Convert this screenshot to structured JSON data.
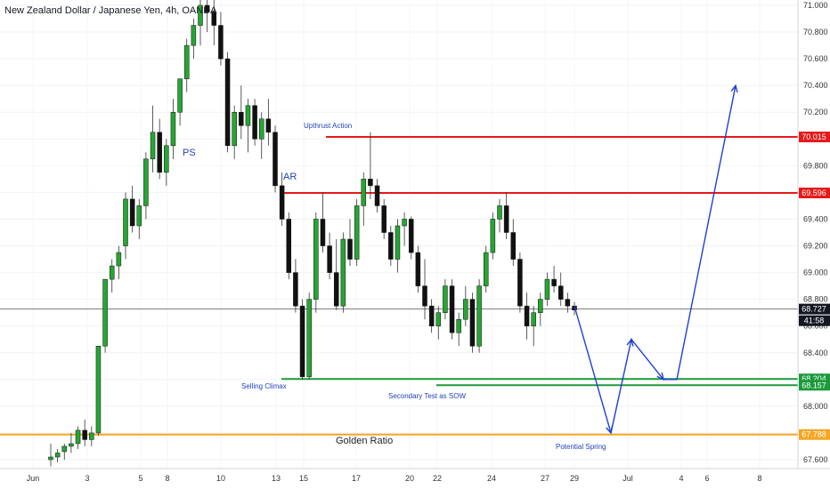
{
  "chart_data": {
    "type": "candlestick",
    "title": "New Zealand Dollar / Japanese Yen, 4h, OANDA",
    "y_axis": {
      "ticks": [
        "71.000",
        "70.800",
        "70.600",
        "70.400",
        "70.200",
        "70.000",
        "69.800",
        "69.600",
        "69.400",
        "69.200",
        "69.000",
        "68.800",
        "68.600",
        "68.400",
        "68.200",
        "68.000",
        "67.800",
        "67.600"
      ],
      "range": [
        67.5,
        71.05
      ]
    },
    "x_axis": {
      "ticks": [
        "Jun",
        "3",
        "5",
        "8",
        "10",
        "13",
        "15",
        "17",
        "20",
        "22",
        "24",
        "27",
        "29",
        "Jul",
        "4",
        "6",
        "8"
      ]
    },
    "price_labels": [
      {
        "text": "70.015",
        "value": 70.015,
        "color": "#e61919"
      },
      {
        "text": "69.596",
        "value": 69.596,
        "color": "#e61919"
      },
      {
        "text": "68.727",
        "value": 68.727,
        "color": "#131722"
      },
      {
        "text": "41:58",
        "value": 68.64,
        "color": "#131722"
      },
      {
        "text": "68.204",
        "value": 68.204,
        "color": "#1a9a3a"
      },
      {
        "text": "68.157",
        "value": 68.157,
        "color": "#1a9a3a"
      },
      {
        "text": "67.788",
        "value": 67.788,
        "color": "#f5a623"
      }
    ],
    "levels": [
      {
        "name": "upthrust",
        "value": 70.015,
        "color": "#e61919"
      },
      {
        "name": "ar",
        "value": 69.596,
        "color": "#e61919"
      },
      {
        "name": "support-upper",
        "value": 68.204,
        "color": "#1a9a3a"
      },
      {
        "name": "support-lower",
        "value": 68.157,
        "color": "#1a9a3a"
      },
      {
        "name": "golden-ratio",
        "value": 67.788,
        "color": "#f5a623"
      },
      {
        "name": "current-price",
        "value": 68.727,
        "color": "#555555"
      }
    ],
    "annotations": {
      "ps": "PS",
      "ar": "AR",
      "upthrust": "Upthrust Action",
      "selling_climax": "Selling Climax",
      "secondary_test": "Secondary Test as SOW",
      "potential_spring": "Potential Spring",
      "golden_ratio": "Golden Ratio"
    },
    "candles": [
      [
        67.6,
        67.72,
        67.55,
        67.62
      ],
      [
        67.62,
        67.68,
        67.58,
        67.65
      ],
      [
        67.66,
        67.72,
        67.6,
        67.7
      ],
      [
        67.7,
        67.8,
        67.65,
        67.72
      ],
      [
        67.72,
        67.85,
        67.68,
        67.82
      ],
      [
        67.82,
        67.9,
        67.7,
        67.75
      ],
      [
        67.75,
        67.85,
        67.7,
        67.8
      ],
      [
        67.8,
        68.45,
        67.78,
        68.45
      ],
      [
        68.45,
        68.95,
        68.4,
        68.95
      ],
      [
        68.95,
        69.1,
        68.85,
        69.05
      ],
      [
        69.05,
        69.2,
        68.95,
        69.15
      ],
      [
        69.2,
        69.6,
        69.1,
        69.55
      ],
      [
        69.55,
        69.65,
        69.3,
        69.35
      ],
      [
        69.35,
        69.55,
        69.25,
        69.5
      ],
      [
        69.5,
        69.9,
        69.4,
        69.85
      ],
      [
        69.85,
        70.25,
        69.75,
        70.05
      ],
      [
        70.05,
        70.15,
        69.7,
        69.75
      ],
      [
        69.75,
        70.0,
        69.65,
        69.95
      ],
      [
        69.95,
        70.3,
        69.85,
        70.2
      ],
      [
        70.2,
        70.45,
        70.1,
        70.45
      ],
      [
        70.45,
        70.75,
        70.35,
        70.7
      ],
      [
        70.7,
        70.9,
        70.6,
        70.85
      ],
      [
        70.85,
        71.05,
        70.7,
        71.0
      ],
      [
        71.0,
        71.1,
        70.8,
        70.95
      ],
      [
        70.95,
        71.1,
        70.7,
        70.85
      ],
      [
        70.85,
        70.95,
        70.55,
        70.6
      ],
      [
        70.6,
        70.65,
        69.9,
        69.95
      ],
      [
        69.95,
        70.25,
        69.85,
        70.2
      ],
      [
        70.2,
        70.4,
        70.0,
        70.1
      ],
      [
        70.1,
        70.3,
        69.9,
        70.25
      ],
      [
        70.25,
        70.3,
        69.95,
        70.0
      ],
      [
        70.0,
        70.2,
        69.85,
        70.15
      ],
      [
        70.15,
        70.3,
        69.95,
        70.05
      ],
      [
        70.05,
        70.1,
        69.6,
        69.65
      ],
      [
        69.65,
        69.75,
        69.35,
        69.4
      ],
      [
        69.4,
        69.45,
        68.95,
        69.0
      ],
      [
        69.0,
        69.1,
        68.7,
        68.75
      ],
      [
        68.75,
        68.8,
        68.2,
        68.22
      ],
      [
        68.22,
        68.85,
        68.2,
        68.8
      ],
      [
        68.8,
        69.45,
        68.7,
        69.4
      ],
      [
        69.4,
        69.6,
        69.15,
        69.2
      ],
      [
        69.2,
        69.3,
        68.95,
        69.0
      ],
      [
        69.0,
        69.25,
        68.72,
        68.75
      ],
      [
        68.75,
        69.3,
        68.7,
        69.25
      ],
      [
        69.25,
        69.4,
        69.05,
        69.1
      ],
      [
        69.1,
        69.55,
        69.05,
        69.5
      ],
      [
        69.5,
        69.75,
        69.35,
        69.7
      ],
      [
        69.7,
        70.05,
        69.55,
        69.65
      ],
      [
        69.65,
        69.7,
        69.45,
        69.5
      ],
      [
        69.5,
        69.55,
        69.25,
        69.3
      ],
      [
        69.3,
        69.35,
        69.05,
        69.1
      ],
      [
        69.1,
        69.4,
        69.0,
        69.35
      ],
      [
        69.35,
        69.45,
        69.2,
        69.4
      ],
      [
        69.4,
        69.42,
        69.1,
        69.15
      ],
      [
        69.15,
        69.2,
        68.85,
        68.9
      ],
      [
        68.9,
        69.1,
        68.65,
        68.75
      ],
      [
        68.75,
        68.8,
        68.55,
        68.6
      ],
      [
        68.6,
        68.75,
        68.5,
        68.7
      ],
      [
        68.7,
        68.95,
        68.65,
        68.9
      ],
      [
        68.9,
        68.95,
        68.5,
        68.55
      ],
      [
        68.55,
        68.7,
        68.45,
        68.65
      ],
      [
        68.65,
        68.9,
        68.6,
        68.8
      ],
      [
        68.8,
        68.85,
        68.4,
        68.45
      ],
      [
        68.45,
        68.95,
        68.4,
        68.9
      ],
      [
        68.9,
        69.2,
        68.85,
        69.15
      ],
      [
        69.15,
        69.45,
        69.1,
        69.4
      ],
      [
        69.4,
        69.55,
        69.3,
        69.5
      ],
      [
        69.5,
        69.6,
        69.25,
        69.3
      ],
      [
        69.3,
        69.4,
        69.05,
        69.1
      ],
      [
        69.1,
        69.15,
        68.7,
        68.75
      ],
      [
        68.75,
        68.85,
        68.5,
        68.6
      ],
      [
        68.6,
        68.75,
        68.45,
        68.7
      ],
      [
        68.7,
        68.85,
        68.6,
        68.8
      ],
      [
        68.8,
        69.0,
        68.75,
        68.95
      ],
      [
        68.95,
        69.05,
        68.85,
        68.9
      ],
      [
        68.9,
        69.0,
        68.75,
        68.8
      ],
      [
        68.8,
        68.85,
        68.7,
        68.75
      ],
      [
        68.75,
        68.78,
        68.68,
        68.72
      ]
    ],
    "projection_path": [
      [
        65.5,
        68.75
      ],
      [
        70.2,
        67.8
      ],
      [
        73.2,
        68.5
      ],
      [
        77.0,
        68.2
      ],
      [
        79.0,
        68.2
      ],
      [
        84.0,
        70.4
      ]
    ]
  }
}
